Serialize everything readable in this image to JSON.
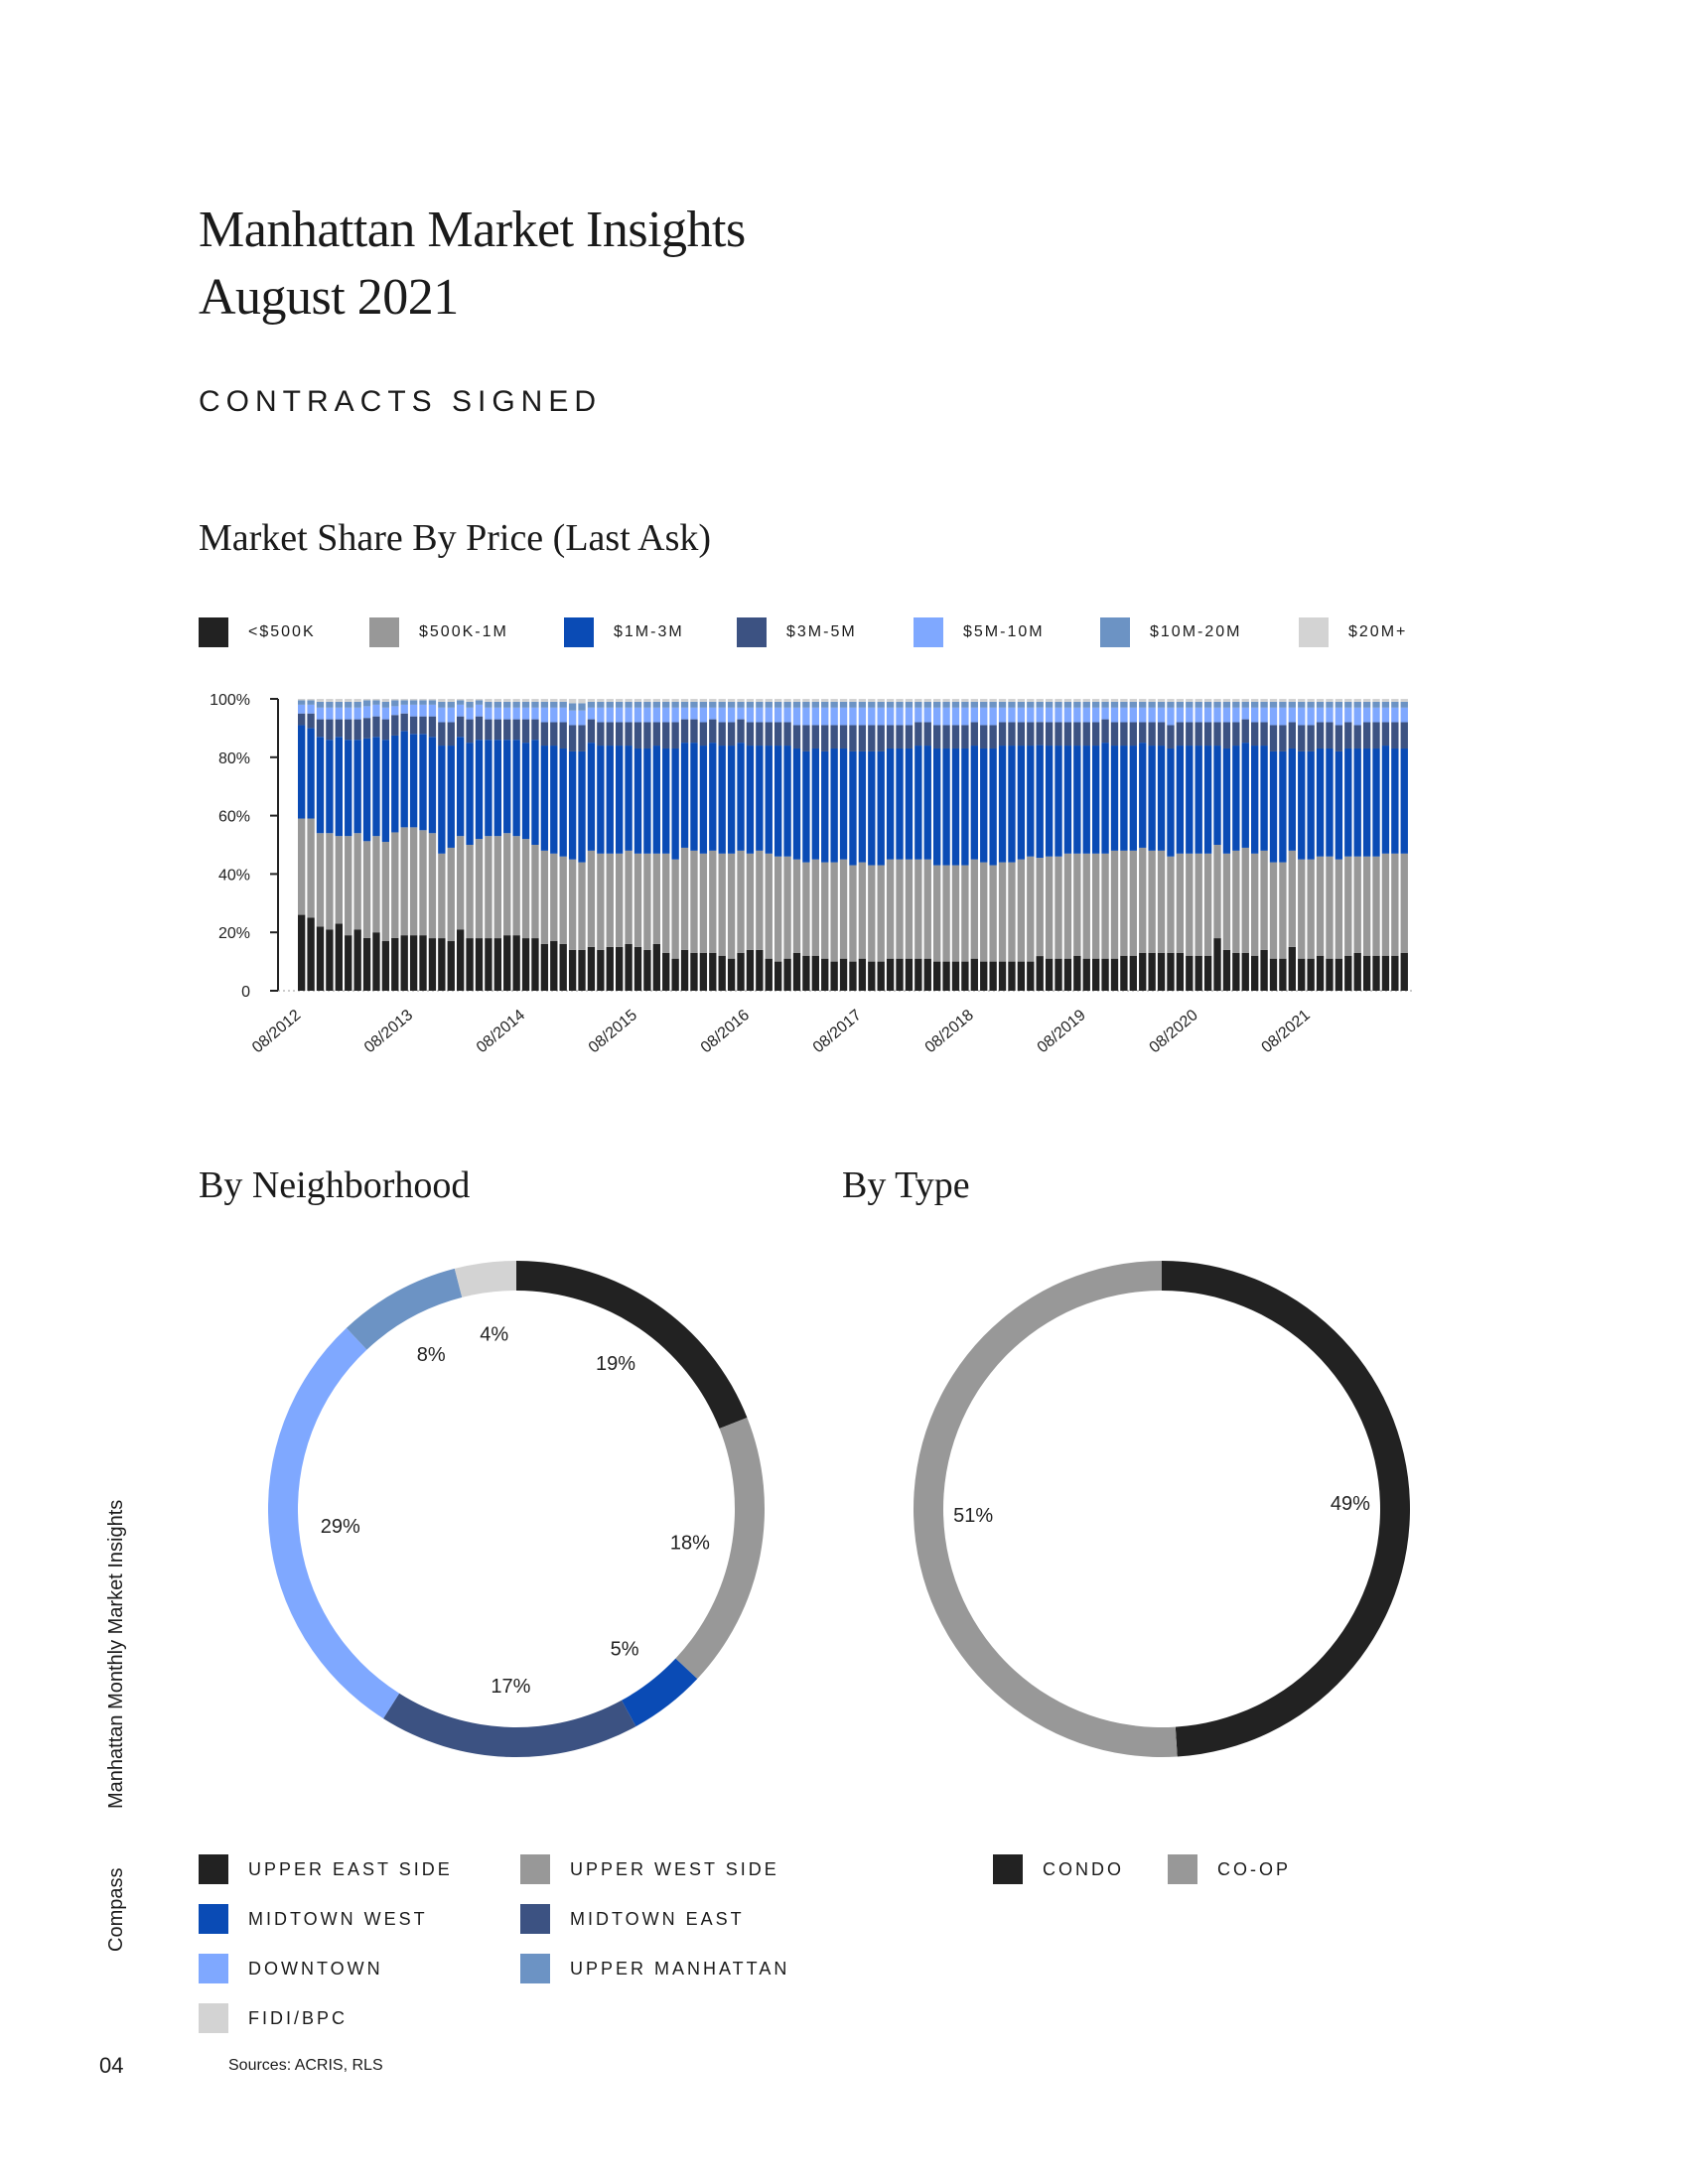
{
  "header": {
    "title_line1": "Manhattan Market Insights",
    "title_line2": "August 2021",
    "section": "CONTRACTS SIGNED"
  },
  "side": {
    "report_name": "Manhattan Monthly Market Insights",
    "brand": "Compass"
  },
  "footer": {
    "page_number": "04",
    "sources": "Sources: ACRIS, RLS"
  },
  "colors": {
    "lt500k": "#222222",
    "k500_1m": "#989898",
    "m1_3": "#0a4bb5",
    "m3_5": "#3c5282",
    "m5_10": "#7fa8ff",
    "m10_20": "#6c93c4",
    "m20plus": "#d3d3d3"
  },
  "chart_data": [
    {
      "type": "bar",
      "stacked": true,
      "title": "Market Share By Price (Last Ask)",
      "legend": [
        "<$500K",
        "$500K-1M",
        "$1M-3M",
        "$3M-5M",
        "$5M-10M",
        "$10M-20M",
        "$20M+"
      ],
      "yticks": [
        "100%",
        "80%",
        "60%",
        "40%",
        "20%",
        "0"
      ],
      "ylim": [
        0,
        100
      ],
      "xticks": [
        "08/2012",
        "08/2013",
        "08/2014",
        "08/2015",
        "08/2016",
        "08/2017",
        "08/2018",
        "08/2019",
        "08/2020",
        "08/2021"
      ],
      "months_from": "08/2012",
      "months_to": "08/2021",
      "series": [
        {
          "name": "<$500K",
          "values": [
            26,
            25,
            22,
            21,
            23,
            19,
            21,
            18,
            20,
            17,
            18,
            19,
            19,
            19,
            18,
            18,
            17,
            21,
            18,
            18,
            18,
            18,
            19,
            19,
            18,
            18,
            16,
            17,
            16,
            14,
            14,
            15,
            14,
            15,
            15,
            16,
            15,
            14,
            16,
            13,
            11,
            14,
            13,
            13,
            13,
            12,
            11,
            13,
            14,
            14,
            11,
            10,
            11,
            13,
            12,
            12,
            11,
            10,
            11,
            10,
            11,
            10,
            10,
            11,
            11,
            11,
            11,
            11,
            10,
            10,
            10,
            10,
            11,
            10,
            10,
            10,
            10,
            10,
            10,
            12,
            11,
            11,
            11,
            12,
            11,
            11,
            11,
            11,
            12,
            12,
            13,
            13,
            13,
            13,
            13,
            12,
            12,
            12,
            18,
            14,
            13,
            13,
            12,
            14,
            11,
            11,
            15,
            11,
            11,
            12,
            11,
            11,
            12,
            13,
            12,
            12,
            12,
            12,
            13
          ]
        },
        {
          "name": "$500K-1M",
          "values": [
            33,
            34,
            32,
            33,
            30,
            34,
            33,
            33,
            33,
            34,
            36,
            37,
            37,
            36,
            36,
            29,
            32,
            32,
            32,
            34,
            35,
            35,
            35,
            34,
            34,
            32,
            32,
            30,
            30,
            31,
            30,
            33,
            33,
            32,
            32,
            32,
            32,
            33,
            31,
            34,
            34,
            35,
            35,
            34,
            35,
            35,
            36,
            35,
            33,
            34,
            36,
            36,
            35,
            32,
            32,
            33,
            33,
            34,
            34,
            33,
            33,
            33,
            33,
            34,
            34,
            34,
            34,
            34,
            33,
            33,
            33,
            33,
            34,
            34,
            33,
            34,
            34,
            35,
            36,
            34,
            35,
            35,
            36,
            35,
            36,
            36,
            36,
            37,
            36,
            36,
            36,
            35,
            35,
            33,
            34,
            35,
            35,
            35,
            32,
            33,
            35,
            36,
            35,
            34,
            33,
            33,
            33,
            34,
            34,
            34,
            35,
            34,
            34,
            33,
            34,
            34,
            35,
            35,
            34
          ]
        },
        {
          "name": "$1M-3M",
          "values": [
            32,
            31,
            33,
            32,
            34,
            33,
            32,
            35,
            34,
            35,
            33,
            33,
            32,
            33,
            33,
            37,
            35,
            34,
            35,
            34,
            33,
            33,
            32,
            33,
            33,
            36,
            36,
            37,
            37,
            37,
            38,
            37,
            37,
            37,
            37,
            36,
            36,
            36,
            37,
            36,
            38,
            36,
            37,
            37,
            37,
            37,
            37,
            37,
            37,
            36,
            37,
            38,
            38,
            38,
            38,
            38,
            38,
            39,
            38,
            39,
            38,
            39,
            39,
            38,
            38,
            38,
            39,
            39,
            40,
            40,
            40,
            40,
            39,
            39,
            40,
            40,
            40,
            39,
            38,
            39,
            38,
            38,
            37,
            37,
            37,
            37,
            38,
            36,
            36,
            36,
            36,
            36,
            36,
            37,
            37,
            37,
            37,
            37,
            34,
            36,
            36,
            36,
            37,
            36,
            38,
            38,
            35,
            37,
            37,
            37,
            37,
            37,
            37,
            37,
            37,
            37,
            37,
            36,
            36
          ]
        },
        {
          "name": "$3M-5M",
          "values": [
            4,
            5,
            6,
            7,
            6,
            7,
            7,
            7,
            7,
            7,
            7,
            6,
            6,
            6,
            7,
            8,
            8,
            7,
            8,
            8,
            7,
            7,
            7,
            7,
            8,
            7,
            8,
            8,
            9,
            9,
            9,
            8,
            8,
            8,
            8,
            8,
            9,
            9,
            8,
            9,
            9,
            8,
            8,
            8,
            8,
            8,
            8,
            8,
            8,
            8,
            8,
            8,
            8,
            8,
            9,
            8,
            9,
            8,
            8,
            9,
            9,
            9,
            9,
            8,
            8,
            8,
            8,
            8,
            8,
            8,
            8,
            8,
            8,
            8,
            8,
            8,
            8,
            8,
            8,
            8,
            8,
            8,
            8,
            8,
            8,
            8,
            8,
            8,
            8,
            8,
            7,
            8,
            8,
            8,
            8,
            8,
            8,
            8,
            8,
            9,
            8,
            8,
            8,
            8,
            9,
            9,
            9,
            9,
            9,
            9,
            9,
            9,
            9,
            8,
            9,
            9,
            8,
            9,
            9
          ]
        },
        {
          "name": "$5M-10M",
          "values": [
            3,
            3,
            4,
            4,
            4,
            4,
            4,
            4,
            4,
            4,
            3,
            3,
            4,
            4,
            4,
            5,
            5,
            4,
            4,
            4,
            4,
            4,
            4,
            4,
            4,
            4,
            5,
            5,
            5,
            5,
            5,
            4,
            5,
            5,
            5,
            5,
            5,
            5,
            5,
            5,
            5,
            4,
            4,
            5,
            4,
            5,
            5,
            4,
            5,
            5,
            5,
            5,
            5,
            6,
            6,
            6,
            6,
            6,
            6,
            6,
            6,
            6,
            6,
            6,
            6,
            6,
            5,
            5,
            6,
            6,
            6,
            6,
            5,
            6,
            6,
            5,
            5,
            5,
            5,
            5,
            5,
            5,
            5,
            5,
            5,
            5,
            4,
            5,
            5,
            5,
            5,
            5,
            5,
            6,
            5,
            5,
            5,
            5,
            5,
            5,
            5,
            4,
            5,
            5,
            6,
            6,
            5,
            6,
            6,
            5,
            5,
            6,
            5,
            6,
            5,
            5,
            5,
            5,
            5
          ]
        },
        {
          "name": "$10M-20M",
          "values": [
            1.5,
            1.5,
            2,
            2,
            2,
            2,
            2,
            2,
            1.5,
            2,
            2,
            1.5,
            1.5,
            1.5,
            1.5,
            2,
            2,
            1.5,
            2,
            1.5,
            2,
            2,
            2,
            2,
            2,
            2,
            2,
            2,
            2,
            2.5,
            2.5,
            2,
            2,
            2,
            2,
            2,
            2,
            2,
            2,
            2,
            2,
            2,
            2,
            2,
            2,
            2,
            2,
            2,
            2,
            2,
            2,
            2,
            2,
            2,
            2,
            2,
            2,
            2,
            2,
            2,
            2,
            2,
            2,
            2,
            2,
            2,
            2,
            2,
            2,
            2,
            2,
            2,
            2,
            2,
            2,
            2,
            2,
            2,
            2,
            2,
            2,
            2,
            2,
            2,
            2,
            2,
            2,
            2,
            2,
            2,
            2,
            2,
            2,
            2,
            2,
            2,
            2,
            2,
            2,
            2,
            2,
            2,
            2,
            2,
            2,
            2,
            2,
            2,
            2,
            2,
            2,
            2,
            2,
            2,
            2,
            2,
            2,
            2,
            2
          ]
        },
        {
          "name": "$20M+",
          "values": [
            0.5,
            0.5,
            1,
            1,
            1,
            1,
            1,
            0.5,
            0.5,
            1,
            0.5,
            0.5,
            0.5,
            0.5,
            0.5,
            1,
            1,
            0.5,
            1,
            0.5,
            1,
            1,
            1,
            1,
            1,
            1,
            1,
            1,
            1,
            1.5,
            1.5,
            1,
            1,
            1,
            1,
            1,
            1,
            1,
            1,
            1,
            1,
            1,
            1,
            1,
            1,
            1,
            1,
            1,
            1,
            1,
            1,
            1,
            1,
            1,
            1,
            1,
            1,
            1,
            1,
            1,
            1,
            1,
            1,
            1,
            1,
            1,
            1,
            1,
            1,
            1,
            1,
            1,
            1,
            1,
            1,
            1,
            1,
            1,
            1,
            1,
            1,
            1,
            1,
            1,
            1,
            1,
            1,
            1,
            1,
            1,
            1,
            1,
            1,
            1,
            1,
            1,
            1,
            1,
            1,
            1,
            1,
            1,
            1,
            1,
            1,
            1,
            1,
            1,
            1,
            1,
            1,
            1,
            1,
            1,
            1,
            1,
            1,
            1,
            1
          ]
        }
      ]
    },
    {
      "type": "pie",
      "donut": true,
      "title": "By Neighborhood",
      "slices": [
        {
          "name": "UPPER EAST SIDE",
          "value": 19,
          "label": "19%"
        },
        {
          "name": "UPPER WEST SIDE",
          "value": 18,
          "label": "18%"
        },
        {
          "name": "MIDTOWN WEST",
          "value": 5,
          "label": "5%"
        },
        {
          "name": "MIDTOWN EAST",
          "value": 17,
          "label": "17%"
        },
        {
          "name": "DOWNTOWN",
          "value": 29,
          "label": "29%"
        },
        {
          "name": "UPPER MANHATTAN",
          "value": 8,
          "label": "8%"
        },
        {
          "name": "FIDI/BPC",
          "value": 4,
          "label": "4%"
        }
      ]
    },
    {
      "type": "pie",
      "donut": true,
      "title": "By Type",
      "slices": [
        {
          "name": "CONDO",
          "value": 49,
          "label": "49%"
        },
        {
          "name": "CO-OP",
          "value": 51,
          "label": "51%"
        }
      ]
    }
  ]
}
